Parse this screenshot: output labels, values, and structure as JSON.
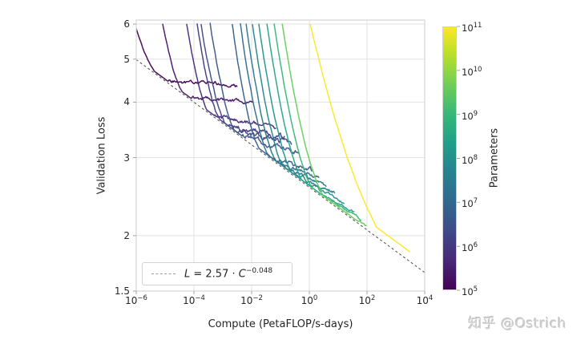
{
  "figure": {
    "background": "#ffffff",
    "text_color": "#262626",
    "grid_color": "#e2e2e2",
    "frame_color": "#d5d5d5"
  },
  "watermark": {
    "text": "知乎 @Ostrich"
  },
  "chart_data": {
    "type": "line",
    "title": "",
    "xlabel": "Compute (PetaFLOP/s-days)",
    "ylabel": "Validation Loss",
    "x_scale": "log",
    "y_scale": "log",
    "x_range_exponents": [
      -6,
      4
    ],
    "y_range": [
      1.5,
      6.1
    ],
    "x_tick_exponents": [
      -6,
      -4,
      -2,
      0,
      2,
      4
    ],
    "y_tick_values": [
      6,
      5,
      4,
      3,
      2,
      1.5
    ],
    "grid": true,
    "legend_position": "lower left",
    "fit_line": {
      "coefficient": 2.57,
      "exponent": -0.048,
      "color": "#4a4a4a",
      "style": "dashed",
      "legend": {
        "var1": "L",
        "mid": " = 2.57 · ",
        "var2": "C",
        "sup": "−0.048"
      }
    },
    "colorbar": {
      "label": "Parameters",
      "tick_exponents": [
        5,
        6,
        7,
        8,
        9,
        10,
        11
      ],
      "colormap": "viridis",
      "stops": [
        "#440154",
        "#482878",
        "#3e4a89",
        "#31688e",
        "#26828e",
        "#1f9e89",
        "#35b779",
        "#6dcd59",
        "#b4de2c",
        "#fde725"
      ]
    },
    "series": [
      {
        "log10_params": 5.0,
        "log10_compute_start": -6.05,
        "log10_compute_tangent": -5.0,
        "log10_compute_end": -2.5,
        "plateau_slope": 0.004,
        "noise_amp": 0.006,
        "final_loss": 4.4,
        "seed": 1
      },
      {
        "log10_params": 5.35,
        "log10_compute_start": -5.08,
        "log10_compute_tangent": -4.23,
        "log10_compute_end": -1.95,
        "plateau_slope": 0.005,
        "noise_amp": 0.006,
        "final_loss": 4.0,
        "seed": 2
      },
      {
        "log10_params": 5.7,
        "log10_compute_start": -4.25,
        "log10_compute_tangent": -3.35,
        "log10_compute_end": -1.15,
        "plateau_slope": 0.012,
        "noise_amp": 0.007,
        "final_loss": 3.5,
        "seed": 3
      },
      {
        "log10_params": 6.0,
        "log10_compute_start": -3.89,
        "log10_compute_tangent": -2.94,
        "log10_compute_end": -0.85,
        "plateau_slope": 0.013,
        "noise_amp": 0.009,
        "final_loss": 3.34,
        "seed": 4
      },
      {
        "log10_params": 6.3,
        "log10_compute_start": -3.75,
        "log10_compute_tangent": -2.75,
        "log10_compute_end": -0.6,
        "plateau_slope": 0.015,
        "noise_amp": 0.009,
        "final_loss": 3.24,
        "seed": 5
      },
      {
        "log10_params": 6.55,
        "log10_compute_start": -3.44,
        "log10_compute_tangent": -2.39,
        "log10_compute_end": -0.35,
        "plateau_slope": 0.018,
        "noise_amp": 0.009,
        "final_loss": 3.08,
        "seed": 6
      },
      {
        "log10_params": 6.8,
        "log10_compute_start": -2.67,
        "log10_compute_tangent": -1.57,
        "log10_compute_end": 0.1,
        "plateau_slope": 0.022,
        "noise_amp": 0.008,
        "final_loss": 2.81,
        "seed": 7
      },
      {
        "log10_params": 7.1,
        "log10_compute_start": -2.39,
        "log10_compute_tangent": -1.24,
        "log10_compute_end": 0.35,
        "plateau_slope": 0.025,
        "noise_amp": 0.008,
        "final_loss": 2.69,
        "seed": 8
      },
      {
        "log10_params": 7.4,
        "log10_compute_start": -2.19,
        "log10_compute_tangent": -0.99,
        "log10_compute_end": 0.6,
        "plateau_slope": 0.028,
        "noise_amp": 0.008,
        "final_loss": 2.59,
        "seed": 9
      },
      {
        "log10_params": 7.75,
        "log10_compute_start": -1.97,
        "log10_compute_tangent": -0.72,
        "log10_compute_end": 0.9,
        "plateau_slope": 0.03,
        "noise_amp": 0.007,
        "final_loss": 2.49,
        "seed": 10
      },
      {
        "log10_params": 8.1,
        "log10_compute_start": -1.75,
        "log10_compute_tangent": -0.4,
        "log10_compute_end": 1.2,
        "plateau_slope": 0.033,
        "noise_amp": 0.005,
        "final_loss": 2.38,
        "seed": 11
      },
      {
        "log10_params": 8.5,
        "log10_compute_start": -1.47,
        "log10_compute_tangent": -0.02,
        "log10_compute_end": 1.55,
        "plateau_slope": 0.036,
        "noise_amp": 0.004,
        "final_loss": 2.26,
        "seed": 12
      },
      {
        "log10_params": 9.0,
        "log10_compute_start": -1.22,
        "log10_compute_tangent": 0.33,
        "log10_compute_end": 1.8,
        "plateau_slope": 0.038,
        "noise_amp": 0.004,
        "final_loss": 2.18,
        "seed": 13
      },
      {
        "log10_params": 9.6,
        "log10_compute_start": -0.94,
        "log10_compute_tangent": 0.76,
        "log10_compute_end": 1.98,
        "plateau_slope": 0.042,
        "noise_amp": 0.004,
        "final_loss": 2.1,
        "seed": 14
      },
      {
        "log10_params": 11.0,
        "log10_compute_start": 0.03,
        "log10_compute_tangent": 4.1,
        "log10_compute_end": 3.5,
        "plateau_slope": 0,
        "noise_amp": 0.0025,
        "shape_power": 2.0,
        "min_gap": 0.022,
        "final_loss": 1.84,
        "seed": 15
      }
    ]
  }
}
